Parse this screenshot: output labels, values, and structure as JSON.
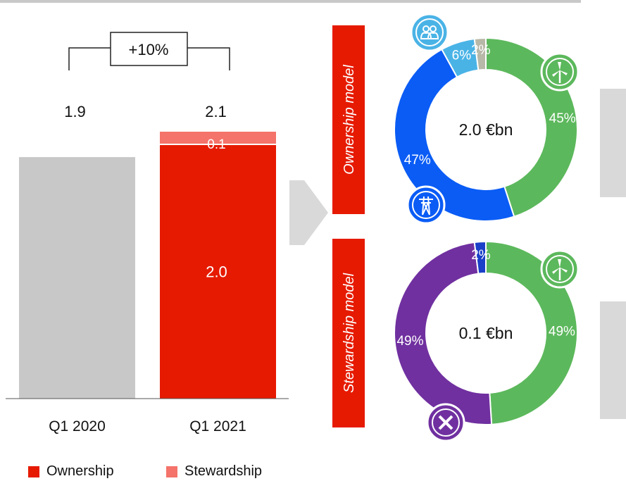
{
  "colors": {
    "q1_2020_bar": "#c8c8c8",
    "ownership": "#e61a00",
    "stewardship": "#f4736a",
    "title_box": "#e61a00",
    "green": "#5cb85c",
    "blue": "#0a5cf5",
    "light_blue": "#4ab3e6",
    "gray_slice": "#b8b8a8",
    "purple": "#7030a0",
    "dark_blue": "#1a3fc8",
    "arrow": "#d9d9d9"
  },
  "chart_data": [
    {
      "type": "bar",
      "stacked": true,
      "categories": [
        "Q1 2020",
        "Q1 2021"
      ],
      "series": [
        {
          "name": "Ownership",
          "values": [
            1.9,
            2.0
          ]
        },
        {
          "name": "Stewardship",
          "values": [
            0,
            0.1
          ]
        }
      ],
      "totals": [
        "1.9",
        "2.1"
      ],
      "segment_labels": {
        "ownership_q1_2021": "2.0",
        "stewardship_q1_2021": "0.1"
      },
      "change_label": "+10%",
      "ylim": [
        0,
        2.1
      ],
      "legend": [
        "Ownership",
        "Stewardship"
      ]
    },
    {
      "type": "pie",
      "donut": true,
      "title": "Ownership model",
      "center_label": "2.0 €bn",
      "slices": [
        {
          "value": 45,
          "label": "45%",
          "color": "#5cb85c",
          "icon": "wind-turbine-icon"
        },
        {
          "value": 47,
          "label": "47%",
          "color": "#0a5cf5",
          "icon": "grid-pylon-icon"
        },
        {
          "value": 6,
          "label": "6%",
          "color": "#4ab3e6",
          "icon": "people-icon"
        },
        {
          "value": 2,
          "label": "2%",
          "color": "#b8b8a8"
        }
      ]
    },
    {
      "type": "pie",
      "donut": true,
      "title": "Stewardship model",
      "center_label": "0.1 €bn",
      "slices": [
        {
          "value": 49,
          "label": "49%",
          "color": "#5cb85c",
          "icon": "wind-turbine-icon"
        },
        {
          "value": 49,
          "label": "49%",
          "color": "#7030a0",
          "icon": "cross-icon"
        },
        {
          "value": 2,
          "label": "2%",
          "color": "#1a3fc8"
        }
      ]
    }
  ]
}
